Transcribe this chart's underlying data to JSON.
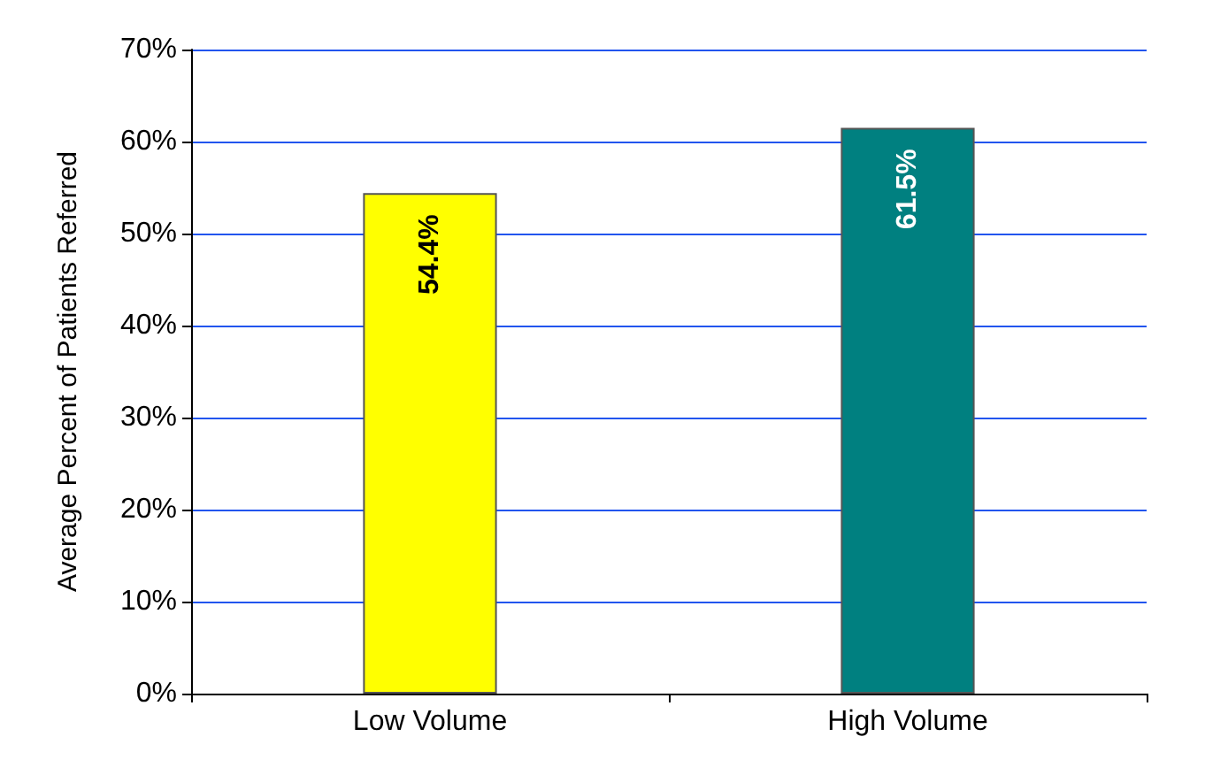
{
  "chart_data": {
    "type": "bar",
    "ylabel": "Average Percent of Patients Referred",
    "categories": [
      "Low Volume",
      "High Volume"
    ],
    "values": [
      54.4,
      61.5
    ],
    "colors": [
      "#ffff00",
      "#008080"
    ],
    "value_labels": [
      "54.4%",
      "61.5%"
    ],
    "ylim": [
      0,
      70
    ],
    "yticks": [
      {
        "value": 0,
        "label": "0%"
      },
      {
        "value": 10,
        "label": "10%"
      },
      {
        "value": 20,
        "label": "20%"
      },
      {
        "value": 30,
        "label": "30%"
      },
      {
        "value": 40,
        "label": "40%"
      },
      {
        "value": 50,
        "label": "50%"
      },
      {
        "value": 60,
        "label": "60%"
      },
      {
        "value": 70,
        "label": "70%"
      }
    ],
    "grid": "y"
  }
}
